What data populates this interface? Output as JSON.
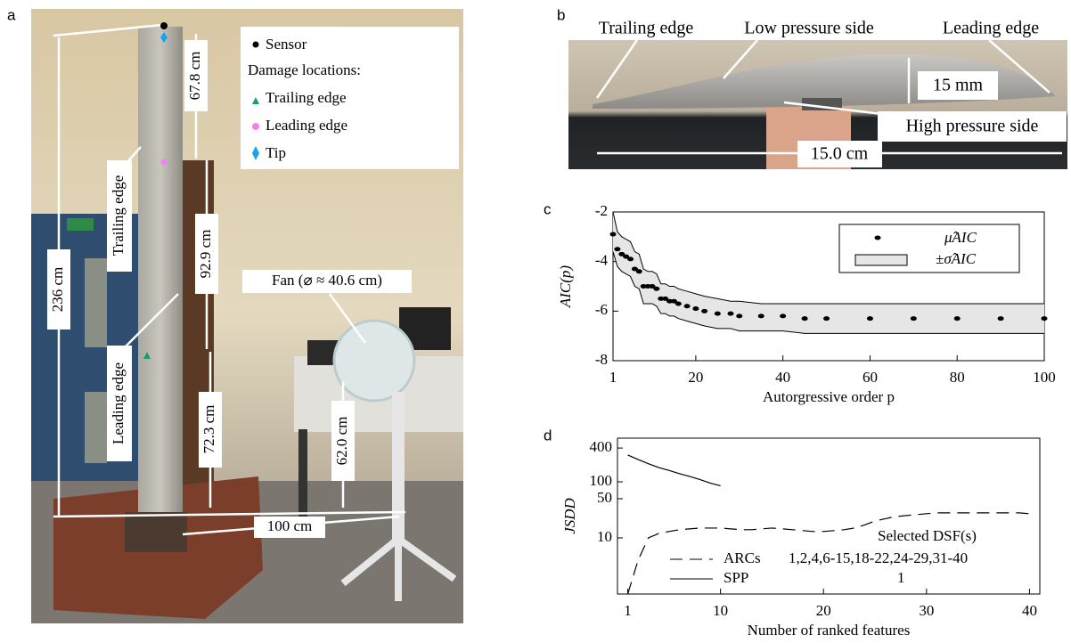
{
  "panels": {
    "a": {
      "label": "a",
      "legend": {
        "sensor": "Sensor",
        "heading": "Damage locations:",
        "items": [
          "Trailing edge",
          "Leading edge",
          "Tip"
        ]
      },
      "dimensions": [
        "236 cm",
        "67.8 cm",
        "92.9 cm",
        "72.3 cm",
        "62.0 cm",
        "100 cm"
      ],
      "fan": "Fan (⌀ ≈ 40.6 cm)",
      "edges": [
        "Trailing edge",
        "Leading edge"
      ]
    },
    "b": {
      "label": "b",
      "annotations": [
        "Trailing edge",
        "Low pressure side",
        "Leading edge",
        "15 mm",
        "High pressure side",
        "15.0 cm"
      ]
    }
  },
  "chart_data": [
    {
      "type": "band-scatter",
      "panel_label": "c",
      "xlabel": "Autorgressive order p",
      "ylabel": "AIC(p)",
      "xlim": [
        1,
        100
      ],
      "xticks": [
        1,
        20,
        40,
        60,
        80,
        100
      ],
      "ylim": [
        -8,
        -2
      ],
      "yticks": [
        -8,
        -6,
        -4,
        -2
      ],
      "x": [
        1,
        2,
        3,
        4,
        5,
        6,
        7,
        8,
        9,
        10,
        11,
        12,
        13,
        14,
        15,
        16,
        18,
        20,
        22,
        25,
        28,
        30,
        35,
        40,
        45,
        50,
        60,
        70,
        80,
        90,
        100
      ],
      "series": [
        {
          "name": "μ̂AIC",
          "color": "#000000",
          "values": [
            -2.9,
            -3.5,
            -3.7,
            -3.8,
            -3.9,
            -4.3,
            -4.4,
            -5.0,
            -5.0,
            -5.0,
            -5.1,
            -5.5,
            -5.5,
            -5.6,
            -5.6,
            -5.7,
            -5.8,
            -5.9,
            -6.0,
            -6.1,
            -6.1,
            -6.2,
            -6.2,
            -6.2,
            -6.3,
            -6.3,
            -6.3,
            -6.3,
            -6.3,
            -6.3,
            -6.3
          ]
        },
        {
          "name": "±σ̂AIC",
          "color": "#e6e6e6",
          "high": [
            -2.0,
            -2.8,
            -3.0,
            -3.1,
            -3.2,
            -3.6,
            -3.7,
            -4.3,
            -4.4,
            -4.4,
            -4.5,
            -4.9,
            -4.9,
            -5.0,
            -5.0,
            -5.1,
            -5.2,
            -5.3,
            -5.4,
            -5.5,
            -5.6,
            -5.6,
            -5.7,
            -5.7,
            -5.7,
            -5.7,
            -5.7,
            -5.7,
            -5.7,
            -5.7,
            -5.7
          ],
          "low": [
            -3.6,
            -4.2,
            -4.4,
            -4.5,
            -4.6,
            -5.0,
            -5.1,
            -5.7,
            -5.7,
            -5.7,
            -5.8,
            -6.1,
            -6.1,
            -6.2,
            -6.2,
            -6.3,
            -6.4,
            -6.5,
            -6.6,
            -6.7,
            -6.7,
            -6.8,
            -6.8,
            -6.8,
            -6.9,
            -6.9,
            -6.9,
            -6.9,
            -6.9,
            -6.9,
            -6.9
          ]
        }
      ]
    },
    {
      "type": "line",
      "panel_label": "d",
      "xlabel": "Number of ranked features",
      "ylabel": "JSDD",
      "log_y": true,
      "xlim": [
        0,
        41
      ],
      "xticks": [
        1,
        10,
        20,
        30,
        40
      ],
      "ylim": [
        1,
        600
      ],
      "yticks": [
        10,
        50,
        100,
        400
      ],
      "legend_title": "Selected DSF(s)",
      "x": [
        1,
        2,
        3,
        4,
        5,
        6,
        7,
        8,
        9,
        10,
        11,
        12,
        13,
        14,
        15,
        16,
        17,
        18,
        19,
        20,
        21,
        22,
        23,
        24,
        25,
        26,
        27,
        28,
        29,
        30,
        31,
        32,
        33,
        34,
        35,
        36,
        37,
        38,
        39,
        40
      ],
      "series": [
        {
          "name": "ARCs",
          "selected": "1,2,4,6-15,18-22,24-29,31-40",
          "color": "#000000",
          "dash": true,
          "values": [
            1,
            4,
            10,
            12,
            13,
            14,
            14.5,
            15,
            15,
            15,
            14.5,
            14,
            14,
            14.5,
            15,
            14.5,
            14,
            13.5,
            13,
            13,
            13.5,
            14,
            15,
            17,
            20,
            22,
            24,
            25,
            26,
            27,
            28,
            28,
            28,
            28,
            28,
            28,
            28,
            28,
            28,
            27
          ]
        },
        {
          "name": "SPP",
          "selected": "1",
          "color": "#000000",
          "dash": false,
          "values": [
            300,
            250,
            210,
            180,
            160,
            140,
            125,
            110,
            95,
            85,
            null,
            null,
            null,
            null,
            null,
            null,
            null,
            null,
            null,
            null,
            null,
            null,
            null,
            null,
            null,
            null,
            null,
            null,
            null,
            null,
            null,
            null,
            null,
            null,
            null,
            null,
            null,
            null,
            null,
            null
          ]
        }
      ]
    }
  ]
}
